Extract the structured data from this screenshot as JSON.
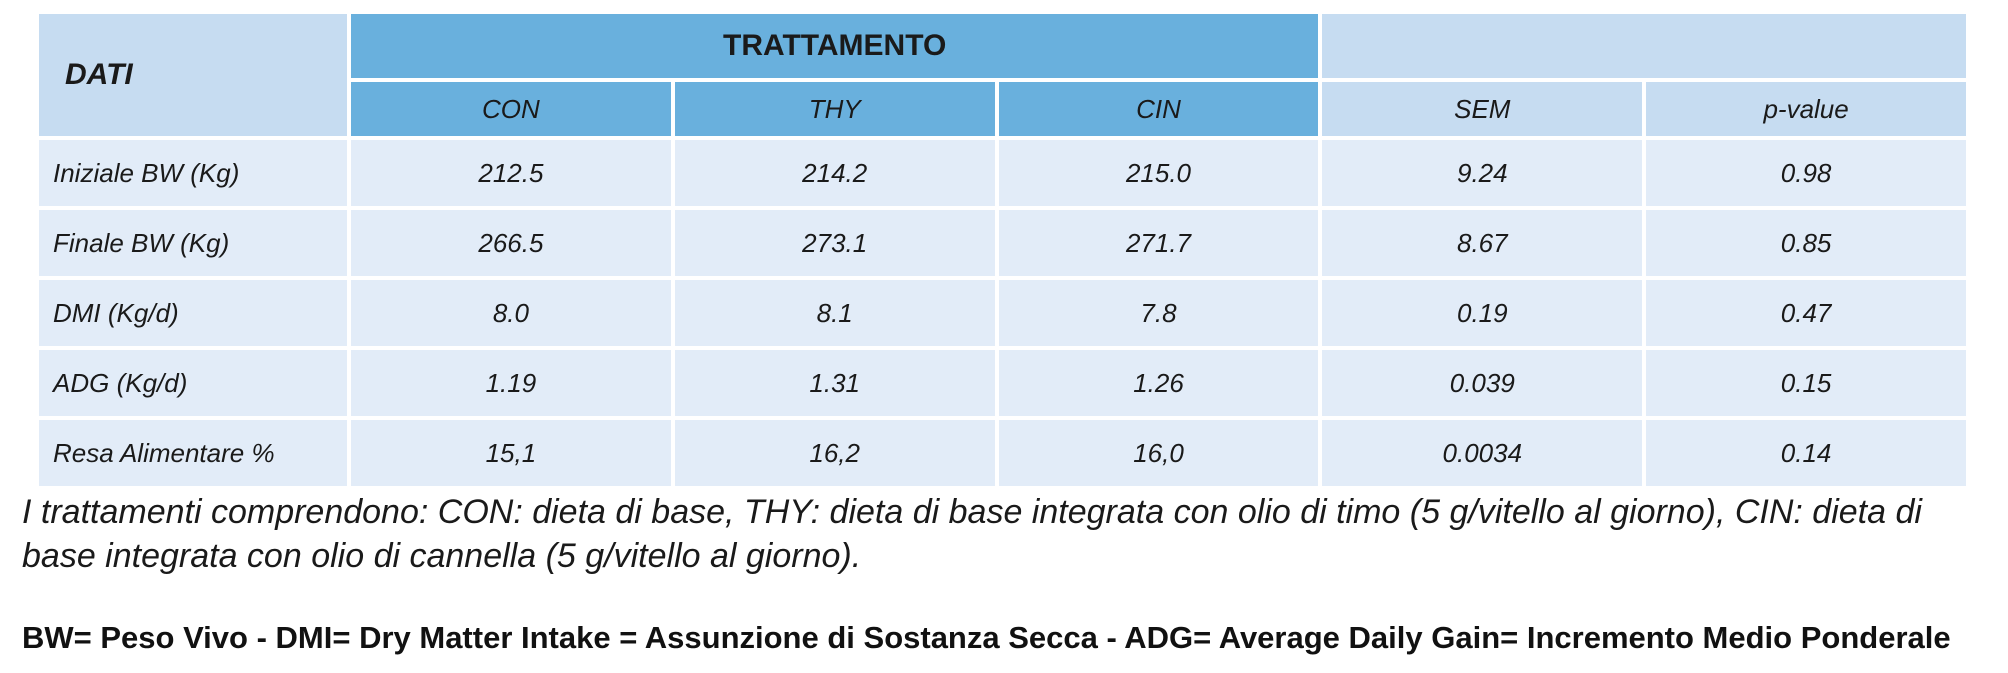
{
  "table": {
    "header": {
      "dati": "DATI",
      "trattamento": "TRATTAMENTO",
      "columns": [
        "CON",
        "THY",
        "CIN",
        "SEM",
        "p-value"
      ]
    },
    "rows": [
      [
        "Iniziale BW (Kg)",
        "212.5",
        "214.2",
        "215.0",
        "9.24",
        "0.98"
      ],
      [
        "Finale BW (Kg)",
        "266.5",
        "273.1",
        "271.7",
        "8.67",
        "0.85"
      ],
      [
        "DMI (Kg/d)",
        "8.0",
        "8.1",
        "7.8",
        "0.19",
        "0.47"
      ],
      [
        "ADG (Kg/d)",
        "1.19",
        "1.31",
        "1.26",
        "0.039",
        "0.15"
      ],
      [
        "Resa Alimentare %",
        "15,1",
        "16,2",
        "16,0",
        "0.0034",
        "0.14"
      ]
    ]
  },
  "notes": {
    "treatments": "I trattamenti comprendono: CON: dieta di base, THY: dieta di base integrata con olio di timo (5 g/vitello al giorno), CIN: dieta di base integrata con olio di cannella (5 g/vitello al giorno).",
    "abbreviations": "BW= Peso Vivo  -  DMI= Dry Matter Intake = Assunzione di Sostanza Secca  -  ADG= Average Daily Gain= Incremento Medio Ponderale"
  }
}
